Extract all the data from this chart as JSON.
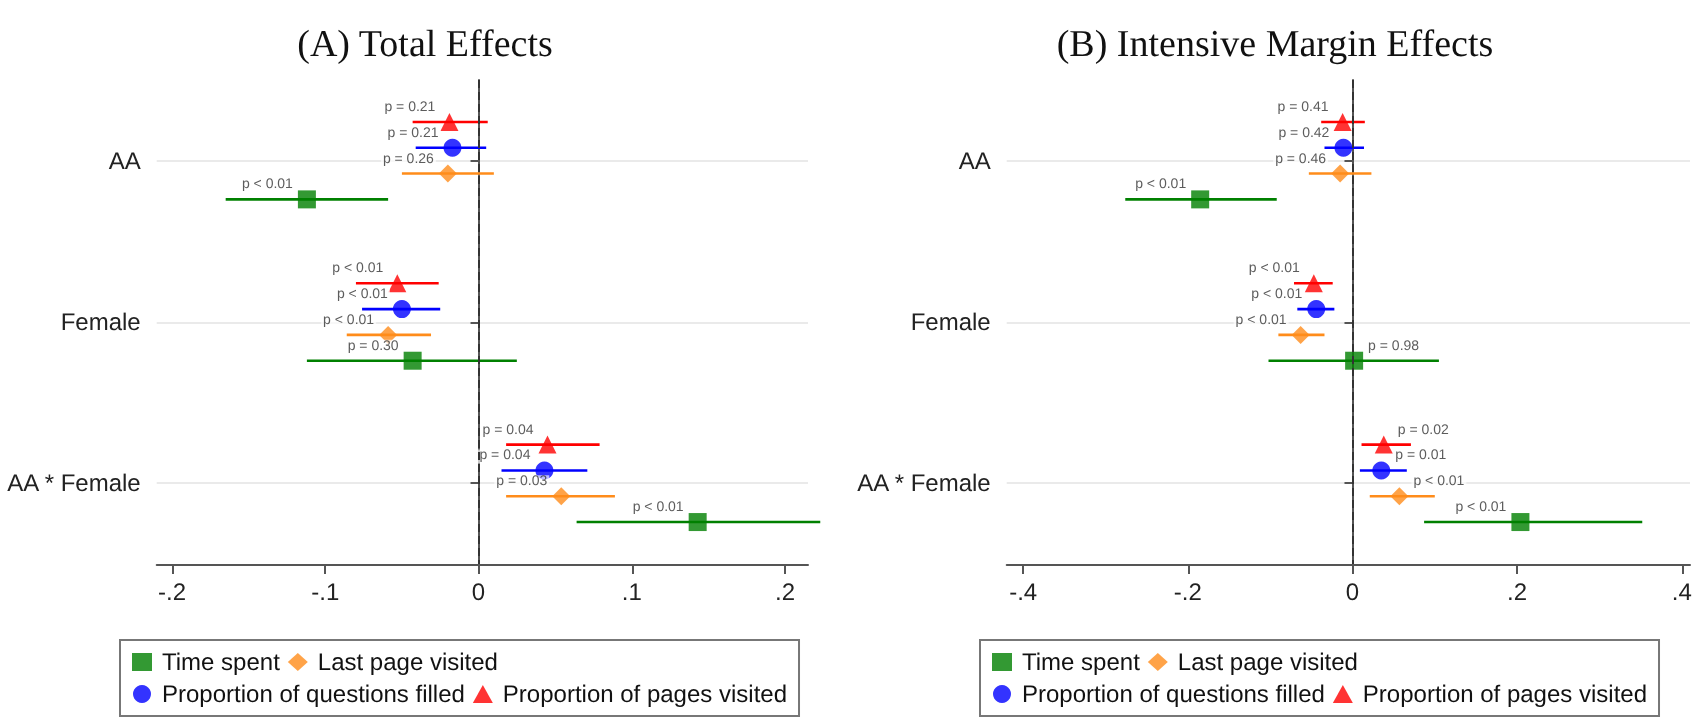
{
  "chart_data": [
    {
      "type": "scatter",
      "orientation": "horizontal",
      "title": "(A) Total Effects",
      "categories": [
        "AA",
        "Female",
        "AA * Female"
      ],
      "series": [
        {
          "name": "Time spent",
          "color": "#008000",
          "marker": "square",
          "values": [
            -0.112,
            -0.043,
            0.143
          ],
          "errors": [
            [
              -0.165,
              -0.059
            ],
            [
              -0.112,
              0.025
            ],
            [
              0.064,
              0.223
            ]
          ]
        },
        {
          "name": "Last page visited",
          "color": "#ff8c1a",
          "marker": "diamond",
          "values": [
            -0.02,
            -0.059,
            0.054
          ],
          "errors": [
            [
              -0.05,
              0.01
            ],
            [
              -0.086,
              -0.031
            ],
            [
              0.018,
              0.089
            ]
          ]
        },
        {
          "name": "Proportion of questions filled",
          "color": "#0000ff",
          "marker": "circle",
          "values": [
            -0.017,
            -0.05,
            0.043
          ],
          "errors": [
            [
              -0.041,
              0.005
            ],
            [
              -0.076,
              -0.025
            ],
            [
              0.015,
              0.071
            ]
          ]
        },
        {
          "name": "Proportion of pages visited",
          "color": "#ff0000",
          "marker": "triangle",
          "values": [
            -0.019,
            -0.053,
            0.045
          ],
          "errors": [
            [
              -0.043,
              0.006
            ],
            [
              -0.08,
              -0.026
            ],
            [
              0.018,
              0.079
            ]
          ]
        }
      ],
      "annotations": [
        "p < 0.01",
        "p = 0.30",
        "p < 0.01",
        "p = 0.26",
        "p < 0.01",
        "p = 0.03",
        "p = 0.21",
        "p < 0.01",
        "p = 0.04",
        "p = 0.21",
        "p < 0.01",
        "p = 0.04"
      ],
      "xlim": [
        -0.21,
        0.215
      ],
      "xticks": [
        {
          "value": -0.2,
          "label": "-.2"
        },
        {
          "value": -0.1,
          "label": "-.1"
        },
        0,
        {
          "value": 0.1,
          "label": ".1"
        },
        {
          "value": 0.2,
          "label": ".2"
        }
      ],
      "ref_lines": [
        {
          "axis": "x",
          "value": 0,
          "color": "#333333",
          "line_style": "dashed"
        }
      ],
      "grid": "y",
      "legend": "bottom"
    },
    {
      "type": "scatter",
      "orientation": "horizontal",
      "title": "(B) Intensive Margin Effects",
      "categories": [
        "AA",
        "Female",
        "AA * Female"
      ],
      "series": [
        {
          "name": "Time spent",
          "color": "#008000",
          "marker": "square",
          "values": [
            -0.185,
            0.002,
            0.204
          ],
          "errors": [
            [
              -0.276,
              -0.092
            ],
            [
              -0.102,
              0.105
            ],
            [
              0.087,
              0.352
            ]
          ]
        },
        {
          "name": "Last page visited",
          "color": "#ff8c1a",
          "marker": "diamond",
          "values": [
            -0.015,
            -0.063,
            0.057
          ],
          "errors": [
            [
              -0.053,
              0.023
            ],
            [
              -0.09,
              -0.034
            ],
            [
              0.021,
              0.1
            ]
          ]
        },
        {
          "name": "Proportion of questions filled",
          "color": "#0000ff",
          "marker": "circle",
          "values": [
            -0.011,
            -0.044,
            0.035
          ],
          "errors": [
            [
              -0.034,
              0.014
            ],
            [
              -0.067,
              -0.022
            ],
            [
              0.009,
              0.066
            ]
          ]
        },
        {
          "name": "Proportion of pages visited",
          "color": "#ff0000",
          "marker": "triangle",
          "values": [
            -0.012,
            -0.047,
            0.038
          ],
          "errors": [
            [
              -0.038,
              0.015
            ],
            [
              -0.071,
              -0.024
            ],
            [
              0.011,
              0.071
            ]
          ]
        }
      ],
      "annotations": [
        "p < 0.01",
        "p = 0.98",
        "p < 0.01",
        "p = 0.46",
        "p < 0.01",
        "p < 0.01",
        "p = 0.42",
        "p < 0.01",
        "p = 0.01",
        "p = 0.41",
        "p < 0.01",
        "p = 0.02"
      ],
      "xlim": [
        -0.42,
        0.41
      ],
      "xticks": [
        {
          "value": -0.4,
          "label": "-.4"
        },
        {
          "value": -0.2,
          "label": "-.2"
        },
        0,
        {
          "value": 0.2,
          "label": ".2"
        },
        {
          "value": 0.4,
          "label": ".4"
        }
      ],
      "ref_lines": [
        {
          "axis": "x",
          "value": 0,
          "color": "#333333",
          "line_style": "dashed"
        }
      ],
      "grid": "y",
      "legend": "bottom"
    }
  ]
}
